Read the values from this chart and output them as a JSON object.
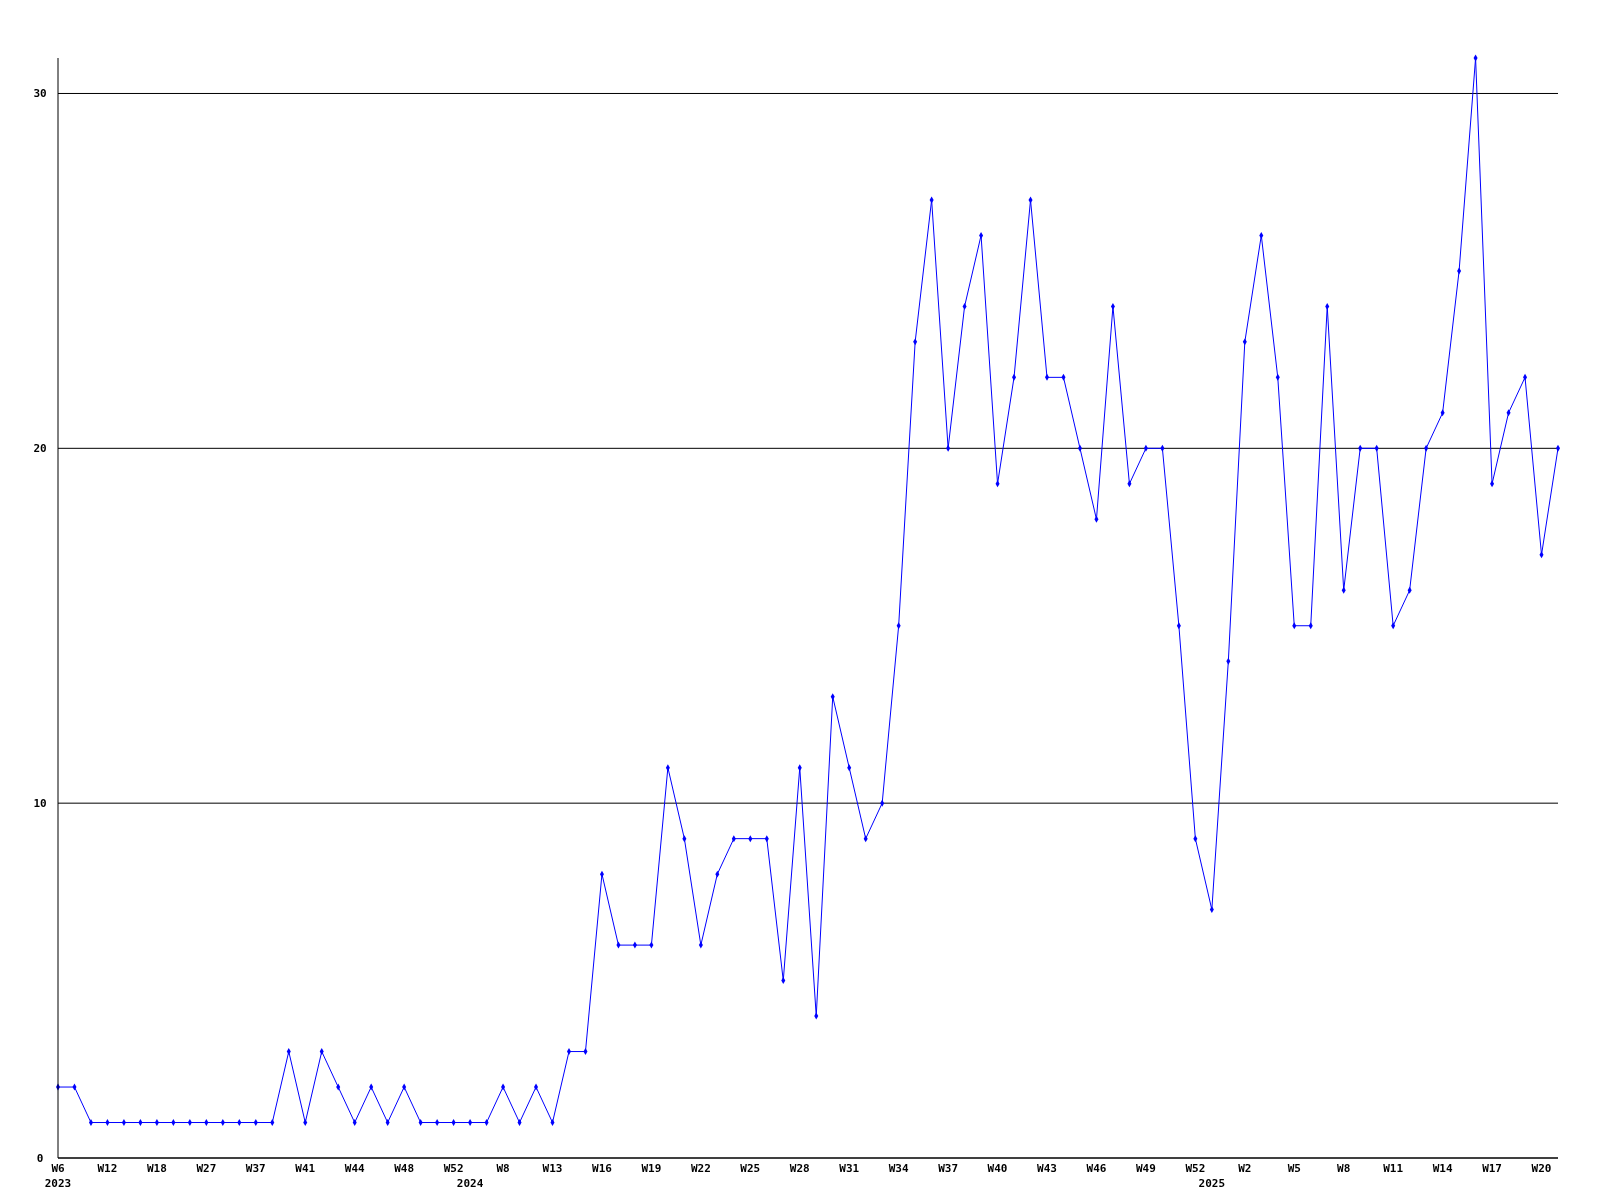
{
  "chart_data": {
    "type": "line",
    "categories": [
      "W6\n2023",
      null,
      null,
      "W12",
      null,
      null,
      "W18",
      null,
      null,
      "W27",
      null,
      null,
      "W37",
      null,
      null,
      "W41",
      null,
      null,
      "W44",
      null,
      null,
      "W48",
      null,
      null,
      "W52",
      "\n2024",
      null,
      "W8",
      null,
      null,
      "W13",
      null,
      null,
      "W16",
      null,
      null,
      "W19",
      null,
      null,
      "W22",
      null,
      null,
      "W25",
      null,
      null,
      "W28",
      null,
      null,
      "W31",
      null,
      null,
      "W34",
      null,
      null,
      "W37",
      null,
      null,
      "W40",
      null,
      null,
      "W43",
      null,
      null,
      "W46",
      null,
      null,
      "W49",
      null,
      null,
      "W52",
      "\n2025",
      null,
      "W2",
      null,
      null,
      "W5",
      null,
      null,
      "W8",
      null,
      null,
      "W11",
      null,
      null,
      "W14",
      null,
      null,
      "W17",
      null,
      null,
      "W20",
      null
    ],
    "series": [
      {
        "color": "#0000ff",
        "values": [
          2,
          2,
          1,
          1,
          1,
          1,
          1,
          1,
          1,
          1,
          1,
          1,
          1,
          1,
          3,
          1,
          3,
          2,
          1,
          2,
          1,
          2,
          1,
          1,
          1,
          1,
          1,
          2,
          1,
          2,
          1,
          3,
          3,
          8,
          6,
          6,
          6,
          11,
          9,
          6,
          8,
          9,
          9,
          9,
          5,
          11,
          4,
          13,
          11,
          9,
          10,
          15,
          23,
          27,
          20,
          24,
          26,
          19,
          22,
          27,
          22,
          22,
          20,
          18,
          24,
          19,
          20,
          20,
          15,
          9,
          7,
          14,
          23,
          26,
          22,
          15,
          15,
          24,
          16,
          20,
          20,
          15,
          16,
          20,
          21,
          25,
          31,
          19,
          21,
          22,
          17,
          20
        ]
      }
    ],
    "ylim": [
      0,
      31
    ],
    "yticks": [
      0,
      10,
      20,
      30
    ],
    "grid": "y",
    "marker": "diamond",
    "line_style": "solid"
  }
}
